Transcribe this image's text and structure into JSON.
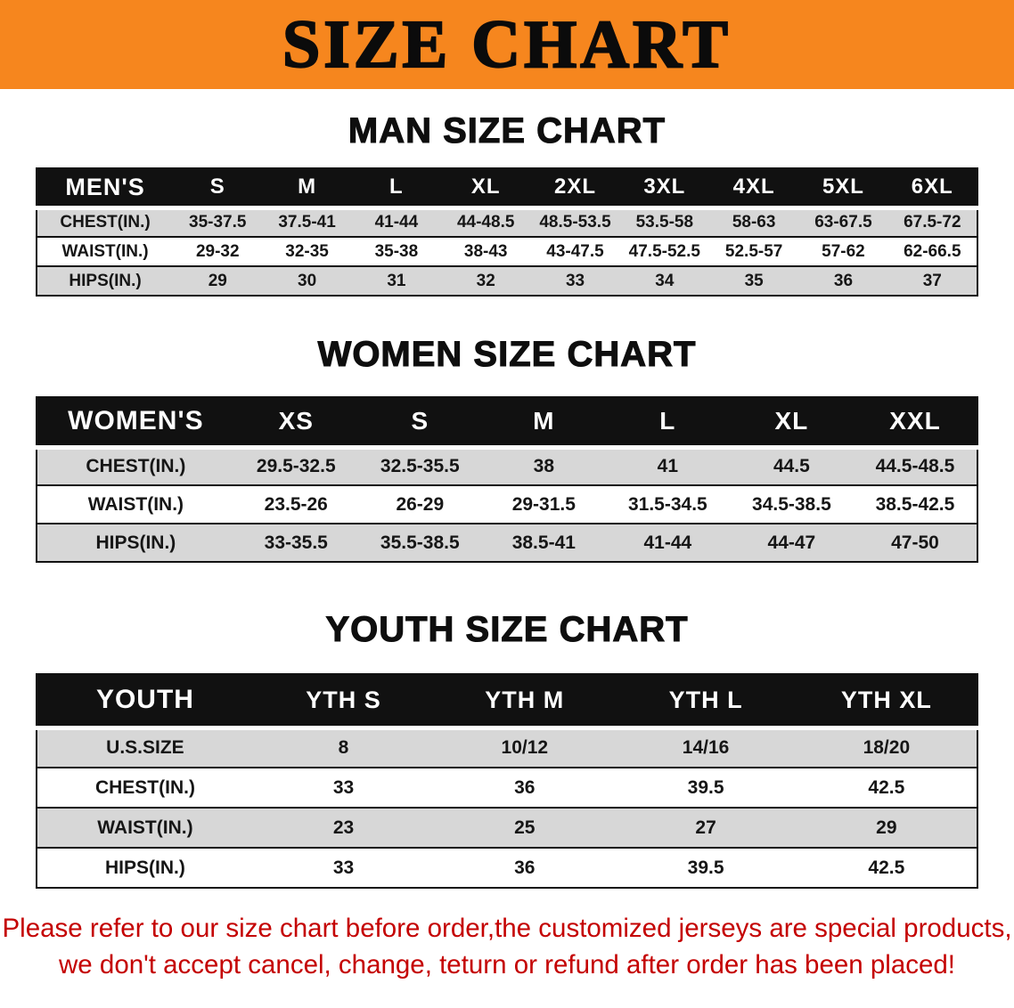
{
  "banner": {
    "title": "SIZE CHART"
  },
  "colors": {
    "banner-orange": "#F6861E",
    "header-black": "#111111",
    "row-gray": "#D7D7D7",
    "footer-red": "#C40000"
  },
  "sections": [
    {
      "heading": "MAN SIZE CHART",
      "table": {
        "header": [
          "MEN'S",
          "S",
          "M",
          "L",
          "XL",
          "2XL",
          "3XL",
          "4XL",
          "5XL",
          "6XL"
        ],
        "rows": [
          [
            "CHEST(IN.)",
            "35-37.5",
            "37.5-41",
            "41-44",
            "44-48.5",
            "48.5-53.5",
            "53.5-58",
            "58-63",
            "63-67.5",
            "67.5-72"
          ],
          [
            "WAIST(IN.)",
            "29-32",
            "32-35",
            "35-38",
            "38-43",
            "43-47.5",
            "47.5-52.5",
            "52.5-57",
            "57-62",
            "62-66.5"
          ],
          [
            "HIPS(IN.)",
            "29",
            "30",
            "31",
            "32",
            "33",
            "34",
            "35",
            "36",
            "37"
          ]
        ]
      }
    },
    {
      "heading": "WOMEN SIZE CHART",
      "table": {
        "header": [
          "WOMEN'S",
          "XS",
          "S",
          "M",
          "L",
          "XL",
          "XXL"
        ],
        "rows": [
          [
            "CHEST(IN.)",
            "29.5-32.5",
            "32.5-35.5",
            "38",
            "41",
            "44.5",
            "44.5-48.5"
          ],
          [
            "WAIST(IN.)",
            "23.5-26",
            "26-29",
            "29-31.5",
            "31.5-34.5",
            "34.5-38.5",
            "38.5-42.5"
          ],
          [
            "HIPS(IN.)",
            "33-35.5",
            "35.5-38.5",
            "38.5-41",
            "41-44",
            "44-47",
            "47-50"
          ]
        ]
      }
    },
    {
      "heading": "YOUTH SIZE CHART",
      "table": {
        "header": [
          "YOUTH",
          "YTH S",
          "YTH M",
          "YTH L",
          "YTH XL"
        ],
        "rows": [
          [
            "U.S.SIZE",
            "8",
            "10/12",
            "14/16",
            "18/20"
          ],
          [
            "CHEST(IN.)",
            "33",
            "36",
            "39.5",
            "42.5"
          ],
          [
            "WAIST(IN.)",
            "23",
            "25",
            "27",
            "29"
          ],
          [
            "HIPS(IN.)",
            "33",
            "36",
            "39.5",
            "42.5"
          ]
        ]
      }
    }
  ],
  "footer": {
    "line1": "Please refer to our size chart before order,the customized jerseys are special products,",
    "line2": "we don't accept cancel, change, teturn or refund after order has been placed!"
  }
}
